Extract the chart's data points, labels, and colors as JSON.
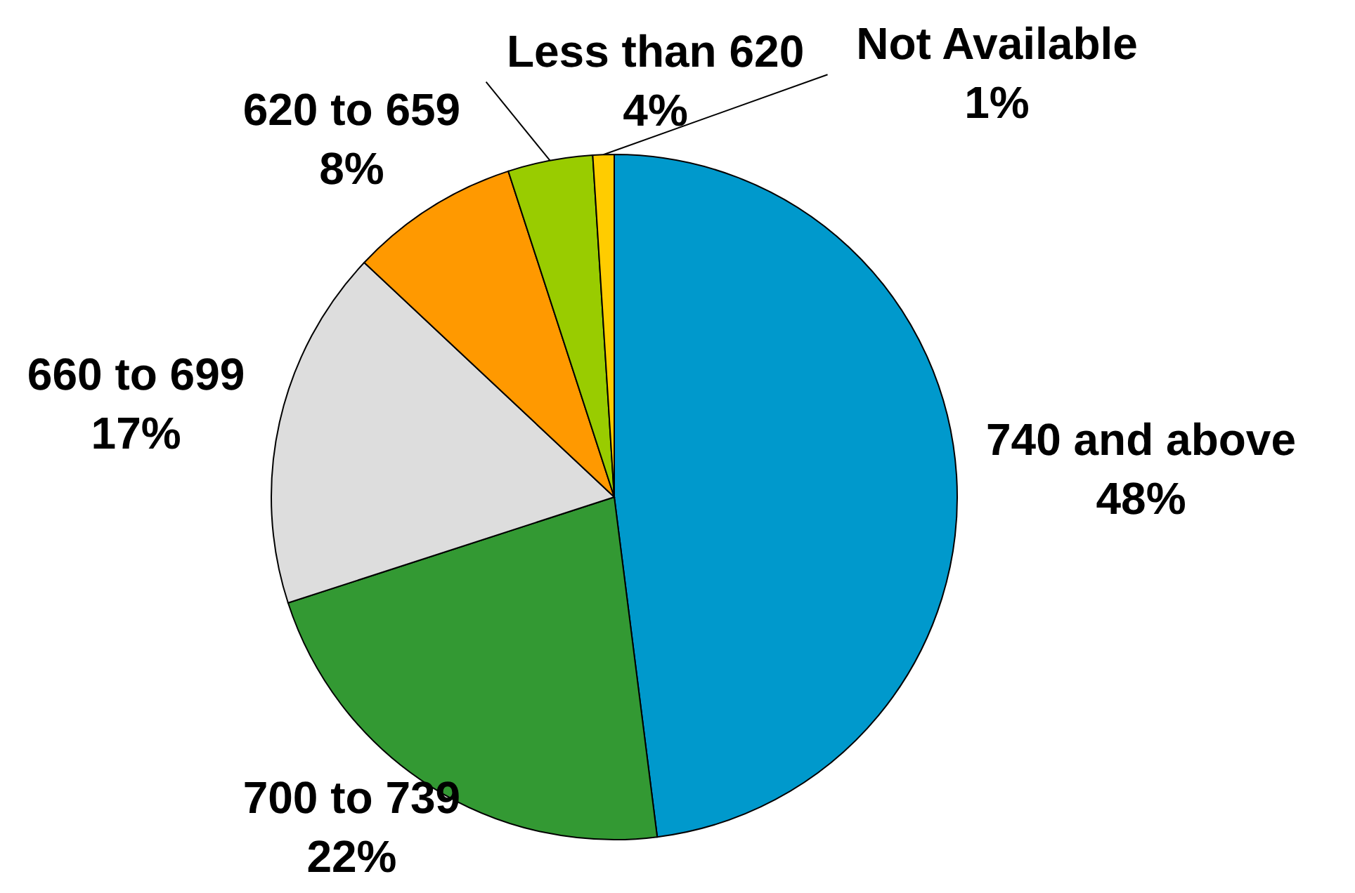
{
  "chart_data": {
    "type": "pie",
    "categories": [
      "740 and above",
      "700 to 739",
      "660 to 699",
      "620 to 659",
      "Less than 620",
      "Not Available"
    ],
    "values": [
      48,
      22,
      17,
      8,
      4,
      1
    ],
    "value_labels": [
      "48%",
      "22%",
      "17%",
      "8%",
      "4%",
      "1%"
    ],
    "colors": [
      "#0099cc",
      "#339933",
      "#dddddd",
      "#ff9900",
      "#99cc00",
      "#ffcc00"
    ]
  }
}
